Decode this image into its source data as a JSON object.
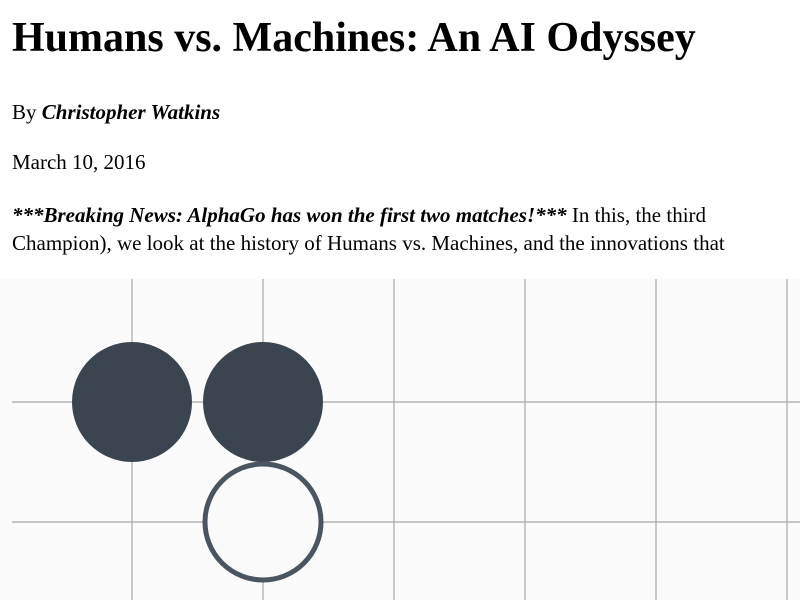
{
  "article": {
    "title": "Humans vs. Machines: An AI Odyssey",
    "byline_prefix": "By ",
    "author": "Christopher Watkins",
    "date": "March 10, 2016",
    "breaking": "***Breaking News: AlphaGo has won the first two matches!***",
    "intro_line1_rest": " In this, the third",
    "intro_line2": "Champion), we look at the history of Humans vs. Machines, and the innovations that"
  },
  "board": {
    "background": "#fbfbfb",
    "grid_color": "#a8a8a8",
    "stones": [
      {
        "color": "black",
        "col": 1,
        "row": 1
      },
      {
        "color": "black",
        "col": 2,
        "row": 1
      },
      {
        "color": "white",
        "col": 2,
        "row": 2
      }
    ]
  },
  "colors": {
    "black_stone": "#3a4550",
    "white_stone_outline": "#4a5560"
  }
}
